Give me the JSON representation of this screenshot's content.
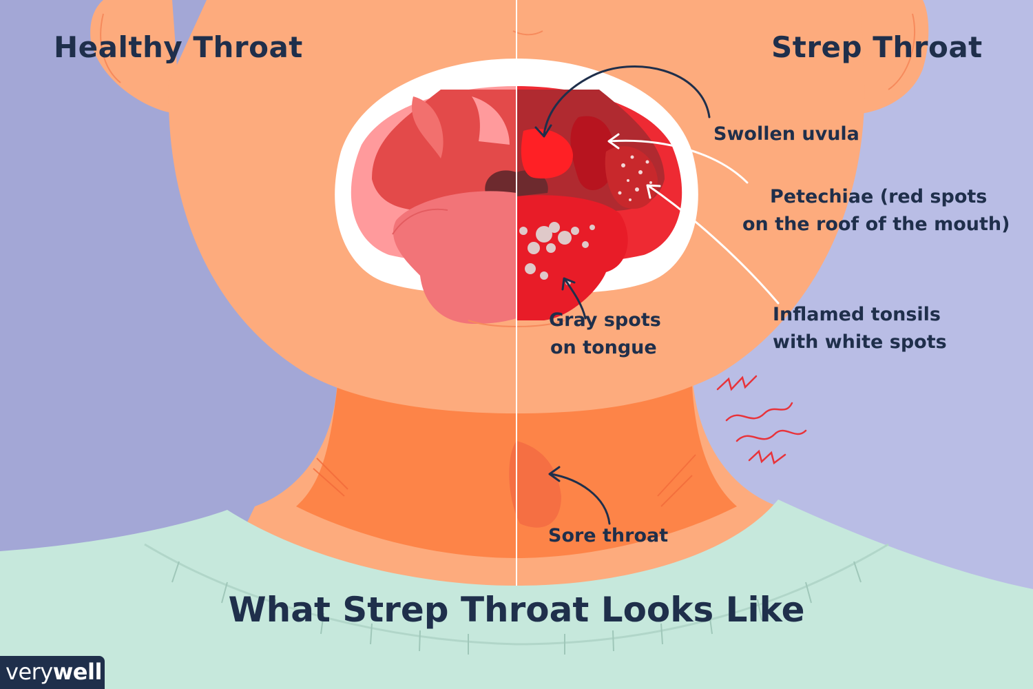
{
  "headings": {
    "left": "Healthy Throat",
    "right": "Strep Throat"
  },
  "callouts": {
    "swollen_uvula": "Swollen uvula",
    "petechiae_line1": "Petechiae (red spots",
    "petechiae_line2": "on the roof of the mouth)",
    "tonsils_line1": "Inflamed tonsils",
    "tonsils_line2": "with white spots",
    "gray_spots_line1": "Gray spots",
    "gray_spots_line2": "on tongue",
    "sore_throat": "Sore throat"
  },
  "title": "What Strep Throat Looks Like",
  "logo": {
    "part1": "very",
    "part2": "well"
  },
  "colors": {
    "background_left": "#a3a7d6",
    "background_right": "#b9bde5",
    "skin": "#fdab7d",
    "neck_shadow": "#fd8448",
    "shirt": "#c6e8dc",
    "text": "#1f2f4b",
    "inflamed_red": "#ee2a33"
  }
}
